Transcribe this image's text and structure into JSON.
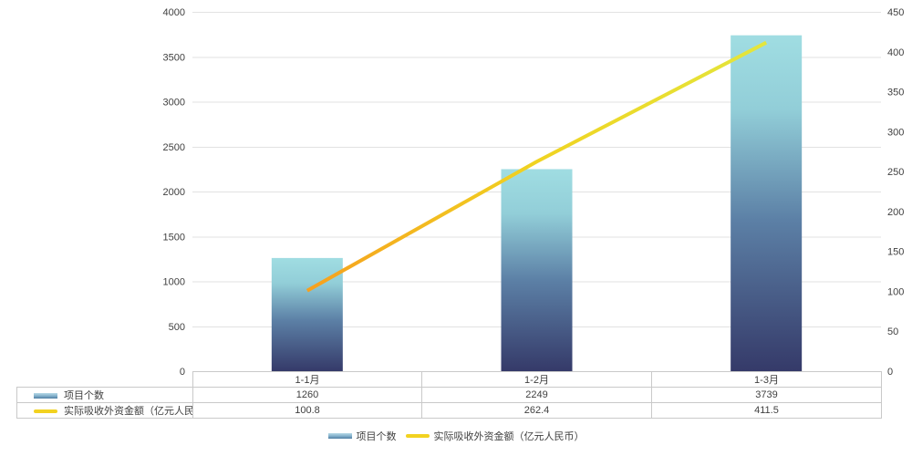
{
  "chart_data": {
    "type": "combo",
    "categories": [
      "1-1月",
      "1-2月",
      "1-3月"
    ],
    "series": [
      {
        "name": "项目个数",
        "type": "bar",
        "axis": "left",
        "values": [
          1260,
          2249,
          3739
        ]
      },
      {
        "name": "实际吸收外资金额（亿元人民币）",
        "type": "line",
        "axis": "right",
        "values": [
          100.8,
          262.4,
          411.5
        ]
      }
    ],
    "left_axis": {
      "min": 0,
      "max": 4000,
      "step": 500,
      "ticks": [
        "0",
        "500",
        "1000",
        "1500",
        "2000",
        "2500",
        "3000",
        "3500",
        "4000"
      ]
    },
    "right_axis": {
      "min": 0,
      "max": 450,
      "step": 50,
      "ticks": [
        "0",
        "50",
        "100",
        "150",
        "200",
        "250",
        "300",
        "350",
        "400",
        "450"
      ]
    },
    "grid": true,
    "legend_position": "bottom",
    "title": "",
    "xlabel": "",
    "ylabel": "",
    "colors": {
      "gridline": "#e2e2e2",
      "axis_text": "#404040",
      "table_border": "#c9c9c9",
      "bar_gradient": [
        {
          "offset": 0,
          "color": "#a0dde2"
        },
        {
          "offset": 0.22,
          "color": "#92ced8"
        },
        {
          "offset": 0.55,
          "color": "#5c80a6"
        },
        {
          "offset": 1,
          "color": "#353a69"
        }
      ],
      "line_gradient": [
        {
          "offset": 0,
          "color": "#f6a01e"
        },
        {
          "offset": 0.5,
          "color": "#f0d321"
        },
        {
          "offset": 1,
          "color": "#e3e63d"
        }
      ],
      "bar_swatch_top": "#b5d8e6",
      "bar_swatch_bottom": "#4f7ea3",
      "line_swatch": "#f2d220"
    }
  }
}
